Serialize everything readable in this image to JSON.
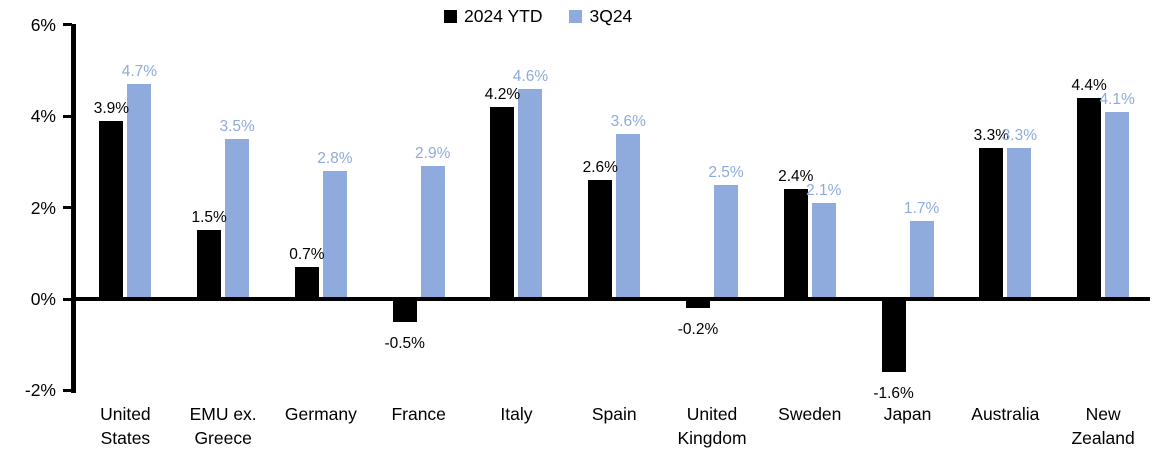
{
  "chart_data": {
    "type": "bar",
    "title": "",
    "xlabel": "",
    "ylabel": "",
    "categories": [
      "United States",
      "EMU ex. Greece",
      "Germany",
      "France",
      "Italy",
      "Spain",
      "United Kingdom",
      "Sweden",
      "Japan",
      "Australia",
      "New Zealand"
    ],
    "series": [
      {
        "name": "2024 YTD",
        "color": "#000000",
        "values": [
          3.9,
          1.5,
          0.7,
          -0.5,
          4.2,
          2.6,
          -0.2,
          2.4,
          -1.6,
          3.3,
          4.4
        ]
      },
      {
        "name": "3Q24",
        "color": "#8FAADC",
        "values": [
          4.7,
          3.5,
          2.8,
          2.9,
          4.6,
          3.6,
          2.5,
          2.1,
          1.7,
          3.3,
          4.1
        ]
      }
    ],
    "data_labels": [
      "3.9%",
      "1.5%",
      "0.7%",
      "-0.5%",
      "4.2%",
      "2.6%",
      "-0.2%",
      "2.4%",
      "-1.6%",
      "3.3%",
      "4.4%",
      "4.7%",
      "3.5%",
      "2.8%",
      "2.9%",
      "4.6%",
      "3.6%",
      "2.5%",
      "2.1%",
      "1.7%",
      "3.3%",
      "4.1%"
    ],
    "ylim": [
      -2,
      6
    ],
    "ytick_values": [
      6,
      4,
      2,
      0,
      -2
    ],
    "ytick_labels": [
      "6%",
      "4%",
      "2%",
      "0%",
      "-2%"
    ],
    "grid": false,
    "legend_position": "top-center",
    "axis_color": "#000000",
    "background_color": "#ffffff"
  }
}
